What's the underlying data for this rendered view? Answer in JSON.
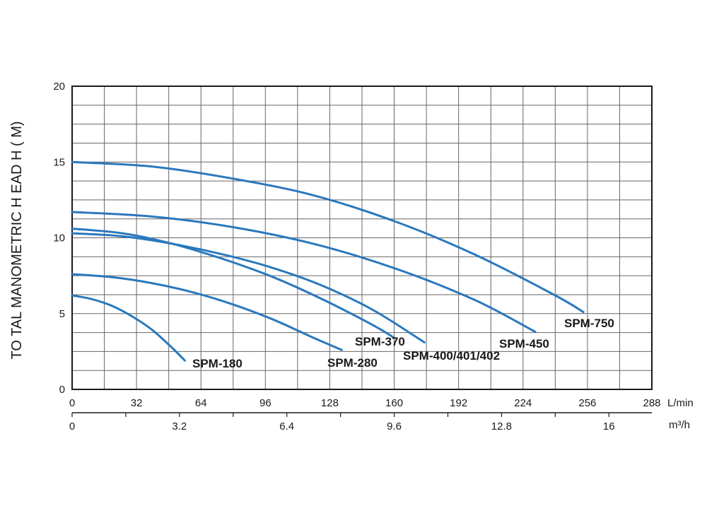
{
  "chart_data": {
    "type": "line",
    "title": "",
    "ylabel": "TO TAL MANOMETRIC H EAD H ( M)",
    "ylim": [
      0,
      20
    ],
    "yticks": [
      "0",
      "5",
      "10",
      "15",
      "20"
    ],
    "xlim": [
      0,
      288
    ],
    "x_unit": "L/min",
    "xticks": [
      "0",
      "32",
      "64",
      "96",
      "128",
      "160",
      "192",
      "224",
      "256",
      "288"
    ],
    "x2_unit": "m³/h",
    "x2ticks": [
      "0",
      "3.2",
      "6.4",
      "9.6",
      "12.8",
      "16"
    ],
    "grid": true,
    "color": "#2a78bd",
    "series": [
      {
        "name": "SPM-180",
        "x": [
          0,
          10,
          20,
          30,
          40,
          50,
          56
        ],
        "y": [
          6.2,
          5.95,
          5.5,
          4.8,
          3.9,
          2.7,
          1.9
        ]
      },
      {
        "name": "SPM-280",
        "x": [
          0,
          20,
          40,
          60,
          80,
          100,
          120,
          134
        ],
        "y": [
          7.6,
          7.4,
          7.0,
          6.4,
          5.6,
          4.6,
          3.4,
          2.6
        ]
      },
      {
        "name": "SPM-370",
        "x": [
          0,
          25,
          50,
          75,
          100,
          125,
          150,
          160
        ],
        "y": [
          10.6,
          10.3,
          9.6,
          8.6,
          7.4,
          5.9,
          4.2,
          3.4
        ]
      },
      {
        "name": "SPM-400/401/402",
        "x": [
          0,
          25,
          50,
          75,
          100,
          125,
          150,
          175
        ],
        "y": [
          10.3,
          10.1,
          9.6,
          8.9,
          8.0,
          6.8,
          5.2,
          3.1
        ]
      },
      {
        "name": "SPM-450",
        "x": [
          0,
          40,
          80,
          120,
          160,
          200,
          230
        ],
        "y": [
          11.7,
          11.4,
          10.7,
          9.6,
          8.0,
          5.9,
          3.8
        ]
      },
      {
        "name": "SPM-750",
        "x": [
          0,
          40,
          80,
          120,
          160,
          200,
          240,
          254
        ],
        "y": [
          15.0,
          14.7,
          13.9,
          12.8,
          11.1,
          8.9,
          6.2,
          5.1
        ]
      }
    ]
  }
}
